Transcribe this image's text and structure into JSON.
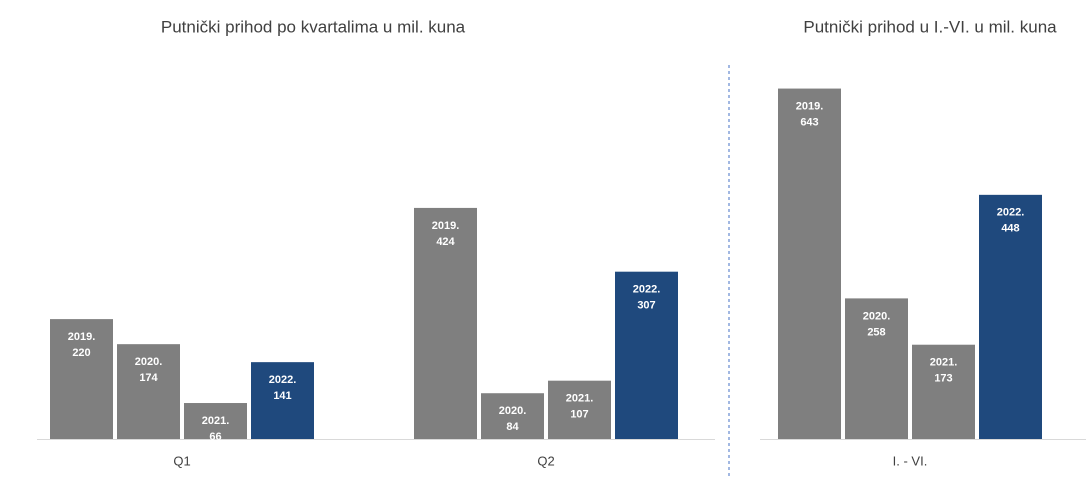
{
  "chart_data": [
    {
      "type": "bar",
      "title": "Putnički prihod po kvartalima u mil. kuna",
      "categories": [
        "Q1",
        "Q2"
      ],
      "series": [
        {
          "name": "2019.",
          "color": "#7f7f7f",
          "values": [
            220,
            424
          ]
        },
        {
          "name": "2020.",
          "color": "#7f7f7f",
          "values": [
            174,
            84
          ]
        },
        {
          "name": "2021.",
          "color": "#7f7f7f",
          "values": [
            66,
            107
          ]
        },
        {
          "name": "2022.",
          "color": "#1f497d",
          "values": [
            141,
            307
          ]
        }
      ],
      "ylim": [
        0,
        700
      ]
    },
    {
      "type": "bar",
      "title": "Putnički prihod u I.-VI. u mil. kuna",
      "categories": [
        "I. - VI."
      ],
      "series": [
        {
          "name": "2019.",
          "color": "#7f7f7f",
          "values": [
            643
          ]
        },
        {
          "name": "2020.",
          "color": "#7f7f7f",
          "values": [
            258
          ]
        },
        {
          "name": "2021.",
          "color": "#7f7f7f",
          "values": [
            173
          ]
        },
        {
          "name": "2022.",
          "color": "#1f497d",
          "values": [
            448
          ]
        }
      ],
      "ylim": [
        0,
        700
      ]
    }
  ]
}
